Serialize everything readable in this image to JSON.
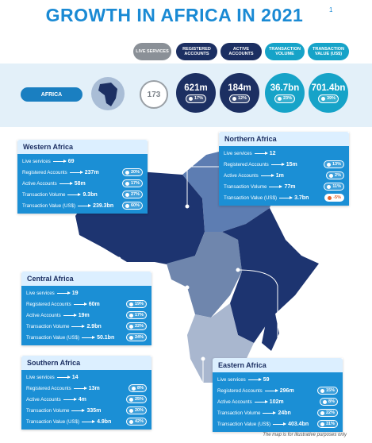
{
  "header": {
    "title": "GROWTH IN AFRICA IN 2021",
    "footnote_ref": "1",
    "columns": [
      {
        "label": "LIVE SERVICES",
        "color": "#8a9097"
      },
      {
        "label": "REGISTERED ACCOUNTS",
        "color": "#1c2f62"
      },
      {
        "label": "ACTIVE ACCOUNTS",
        "color": "#1c2f62"
      },
      {
        "label": "TRANSACTION VOLUME",
        "color": "#16a3c8"
      },
      {
        "label": "TRANSACTION VALUE (US$)",
        "color": "#16a3c8"
      }
    ]
  },
  "africa": {
    "label": "AFRICA",
    "live_services": "173",
    "metrics": [
      {
        "value": "621m",
        "change": "17%"
      },
      {
        "value": "184m",
        "change": "12%"
      },
      {
        "value": "36.7bn",
        "change": "23%"
      },
      {
        "value": "701.4bn",
        "change": "39%"
      }
    ]
  },
  "regions": [
    {
      "name": "Western Africa",
      "rows": [
        {
          "label": "Live services",
          "value": "69"
        },
        {
          "label": "Registered Accounts",
          "value": "237m",
          "change": "20%"
        },
        {
          "label": "Active Accounts",
          "value": "58m",
          "change": "17%"
        },
        {
          "label": "Transaction Volume",
          "value": "9.3bn",
          "change": "27%"
        },
        {
          "label": "Transaction Value (US$)",
          "value": "239.3bn",
          "change": "60%"
        }
      ]
    },
    {
      "name": "Northern Africa",
      "rows": [
        {
          "label": "Live services",
          "value": "12"
        },
        {
          "label": "Registered Accounts",
          "value": "15m",
          "change": "13%"
        },
        {
          "label": "Active Accounts",
          "value": "1m",
          "change": "2%"
        },
        {
          "label": "Transaction Volume",
          "value": "77m",
          "change": "11%"
        },
        {
          "label": "Transaction Value (US$)",
          "value": "3.7bn",
          "change": "-5%"
        }
      ]
    },
    {
      "name": "Central Africa",
      "rows": [
        {
          "label": "Live services",
          "value": "19"
        },
        {
          "label": "Registered Accounts",
          "value": "60m",
          "change": "19%"
        },
        {
          "label": "Active Accounts",
          "value": "19m",
          "change": "17%"
        },
        {
          "label": "Transaction Volume",
          "value": "2.9bn",
          "change": "22%"
        },
        {
          "label": "Transaction Value (US$)",
          "value": "50.1bn",
          "change": "24%"
        }
      ]
    },
    {
      "name": "Southern Africa",
      "rows": [
        {
          "label": "Live services",
          "value": "14"
        },
        {
          "label": "Registered Accounts",
          "value": "13m",
          "change": "8%"
        },
        {
          "label": "Active Accounts",
          "value": "4m",
          "change": "25%"
        },
        {
          "label": "Transaction Volume",
          "value": "335m",
          "change": "20%"
        },
        {
          "label": "Transaction Value (US$)",
          "value": "4.9bn",
          "change": "42%"
        }
      ]
    },
    {
      "name": "Eastern Africa",
      "rows": [
        {
          "label": "Live services",
          "value": "59"
        },
        {
          "label": "Registered Accounts",
          "value": "296m",
          "change": "15%"
        },
        {
          "label": "Active Accounts",
          "value": "102m",
          "change": "8%"
        },
        {
          "label": "Transaction Volume",
          "value": "24bn",
          "change": "22%"
        },
        {
          "label": "Transaction Value (US$)",
          "value": "403.4bn",
          "change": "31%"
        }
      ]
    }
  ],
  "footnote": "The map is for illustrative purposes only"
}
